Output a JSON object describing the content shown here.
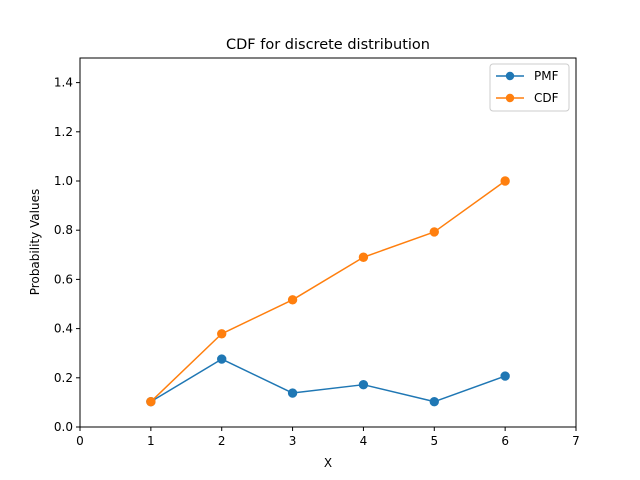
{
  "chart_data": {
    "type": "line",
    "title": "CDF for discrete distribution",
    "xlabel": "X",
    "ylabel": "Probability Values",
    "xlim": [
      0,
      7
    ],
    "ylim": [
      0,
      1.5
    ],
    "xticks": [
      0,
      1,
      2,
      3,
      4,
      5,
      6,
      7
    ],
    "yticks": [
      0.0,
      0.2,
      0.4,
      0.6,
      0.8,
      1.0,
      1.2,
      1.4
    ],
    "xtick_labels": [
      "0",
      "1",
      "2",
      "3",
      "4",
      "5",
      "6",
      "7"
    ],
    "ytick_labels": [
      "0.0",
      "0.2",
      "0.4",
      "0.6",
      "0.8",
      "1.0",
      "1.2",
      "1.4"
    ],
    "grid": false,
    "legend_position": "top-right",
    "x": [
      1,
      2,
      3,
      4,
      5,
      6
    ],
    "series": [
      {
        "name": "PMF",
        "color": "#1f77b4",
        "marker": "circle",
        "values": [
          0.103,
          0.276,
          0.138,
          0.172,
          0.103,
          0.207
        ]
      },
      {
        "name": "CDF",
        "color": "#ff7f0e",
        "marker": "circle",
        "values": [
          0.103,
          0.379,
          0.517,
          0.69,
          0.793,
          1.0
        ]
      }
    ]
  }
}
